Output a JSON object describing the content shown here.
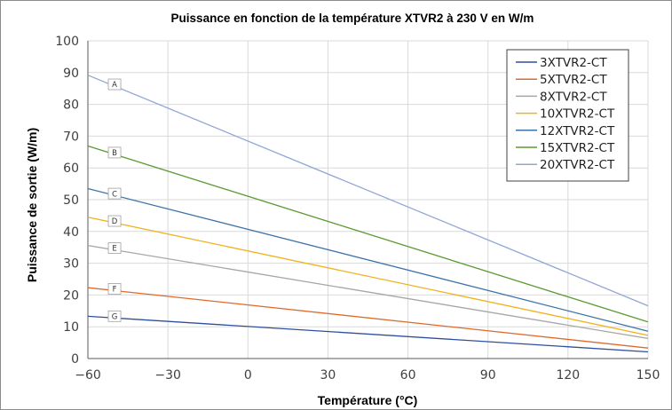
{
  "chart_data": {
    "type": "line",
    "title": "Puissance en fonction de la température XTVR2 à 230 V en W/m",
    "xlabel": "Température (°C)",
    "ylabel": "Puissance de sortie (W/m)",
    "xlim": [
      -60,
      150
    ],
    "ylim": [
      0,
      100
    ],
    "xticks": [
      -60,
      -30,
      0,
      30,
      60,
      90,
      120,
      150
    ],
    "xtick_labels": [
      "−60",
      "−30",
      "0",
      "30",
      "60",
      "90",
      "120",
      "150"
    ],
    "yticks": [
      0,
      10,
      20,
      30,
      40,
      50,
      60,
      70,
      80,
      90,
      100
    ],
    "ytick_labels": [
      "0",
      "10",
      "20",
      "30",
      "40",
      "50",
      "60",
      "70",
      "80",
      "90",
      "100"
    ],
    "grid": true,
    "legend_position": "top-right",
    "series": [
      {
        "name": "3XTVR2-CT",
        "color": "#2e4f9e",
        "label": "G",
        "x": [
          -60,
          150
        ],
        "y": [
          13.3,
          2.1
        ]
      },
      {
        "name": "5XTVR2-CT",
        "color": "#e06a2c",
        "label": "F",
        "x": [
          -60,
          150
        ],
        "y": [
          22.3,
          3.3
        ]
      },
      {
        "name": "8XTVR2-CT",
        "color": "#a6a6a6",
        "label": "E",
        "x": [
          -60,
          150
        ],
        "y": [
          35.6,
          6.3
        ]
      },
      {
        "name": "10XTVR2-CT",
        "color": "#f0b21c",
        "label": "D",
        "x": [
          -60,
          150
        ],
        "y": [
          44.5,
          7.3
        ]
      },
      {
        "name": "12XTVR2-CT",
        "color": "#3c73a8",
        "label": "C",
        "x": [
          -60,
          150
        ],
        "y": [
          53.5,
          8.6
        ]
      },
      {
        "name": "15XTVR2-CT",
        "color": "#5a9a30",
        "label": "B",
        "x": [
          -60,
          150
        ],
        "y": [
          66.9,
          11.5
        ]
      },
      {
        "name": "20XTVR2-CT",
        "color": "#91a7d4",
        "label": "A",
        "x": [
          -60,
          150
        ],
        "y": [
          89.2,
          16.6
        ]
      }
    ]
  }
}
